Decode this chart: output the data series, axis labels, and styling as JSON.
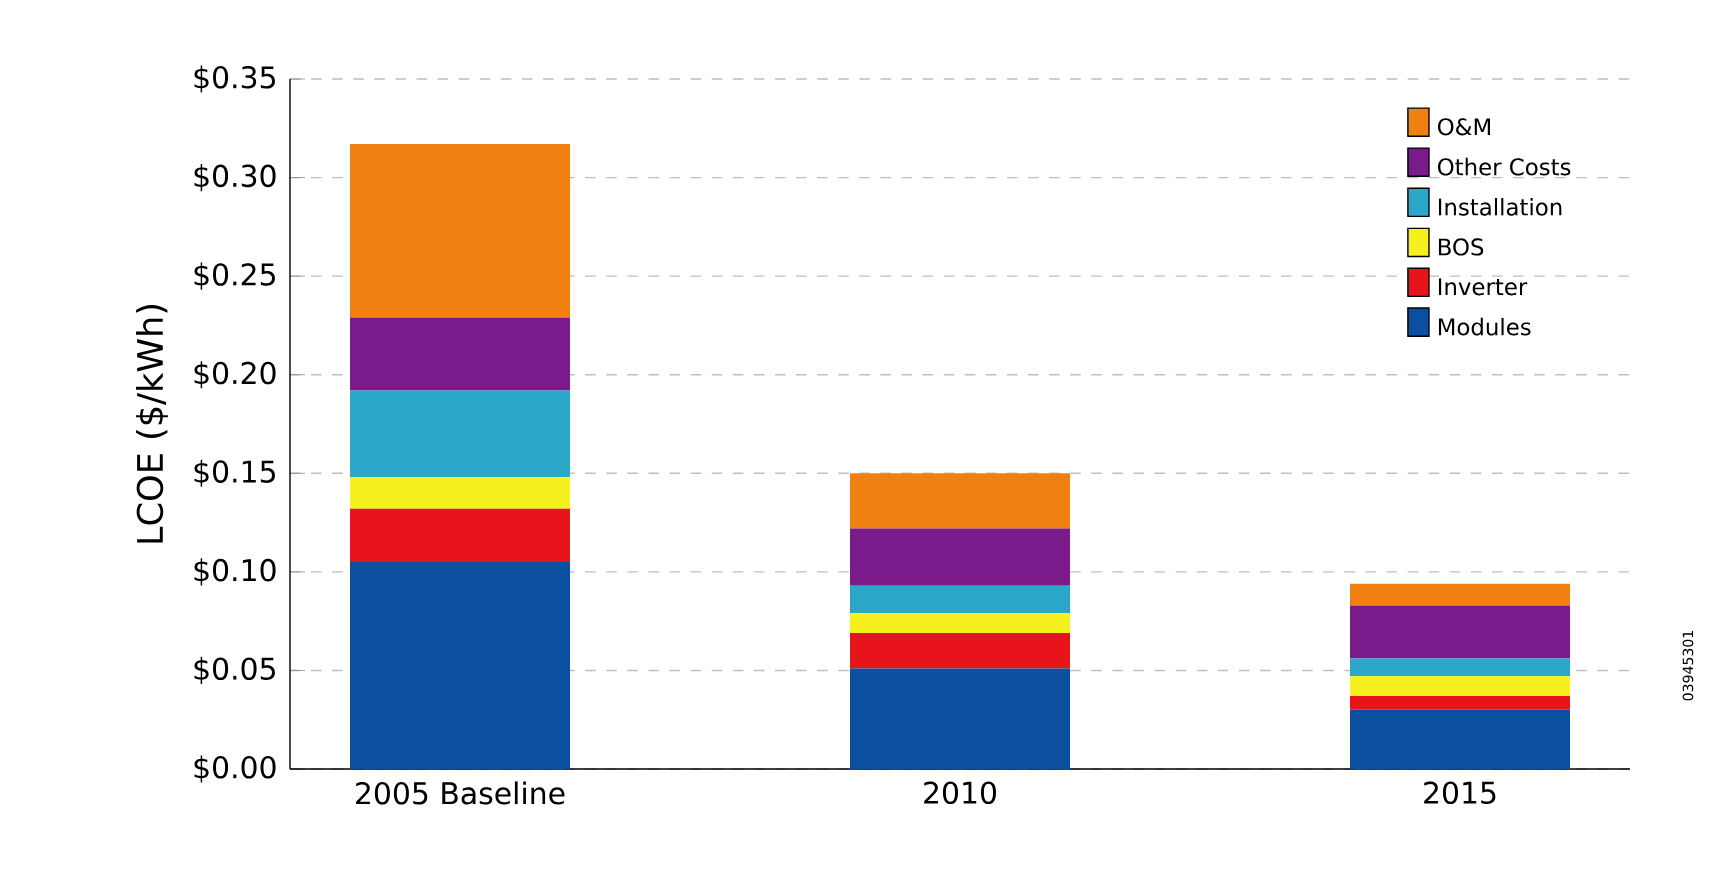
{
  "chart_data": {
    "type": "bar",
    "stacked": true,
    "ylabel": "LCOE ($/kWh)",
    "categories": [
      "2005 Baseline",
      "2010",
      "2015"
    ],
    "series": [
      {
        "name": "Modules",
        "color": "#0a4fa0",
        "values": [
          0.105,
          0.051,
          0.03
        ]
      },
      {
        "name": "Inverter",
        "color": "#e8141b",
        "values": [
          0.027,
          0.018,
          0.007
        ]
      },
      {
        "name": "BOS",
        "color": "#f5f01e",
        "values": [
          0.016,
          0.01,
          0.01
        ]
      },
      {
        "name": "Installation",
        "color": "#2aa7c9",
        "values": [
          0.044,
          0.014,
          0.009
        ]
      },
      {
        "name": "Other Costs",
        "color": "#7b1a8a",
        "values": [
          0.037,
          0.029,
          0.027
        ]
      },
      {
        "name": "O&M",
        "color": "#f08010",
        "values": [
          0.088,
          0.028,
          0.011
        ]
      }
    ],
    "ylim": [
      0,
      0.35
    ],
    "yticks": [
      {
        "value": 0,
        "label": "$0.00"
      },
      {
        "value": 0.05,
        "label": "$0.05"
      },
      {
        "value": 0.1,
        "label": "$0.10"
      },
      {
        "value": 0.15,
        "label": "$0.15"
      },
      {
        "value": 0.2,
        "label": "$0.20"
      },
      {
        "value": 0.25,
        "label": "$0.25"
      },
      {
        "value": 0.3,
        "label": "$0.30"
      },
      {
        "value": 0.35,
        "label": "$0.35"
      }
    ],
    "grid": "y",
    "legend": "top right",
    "annotations": [
      "03945301"
    ]
  }
}
